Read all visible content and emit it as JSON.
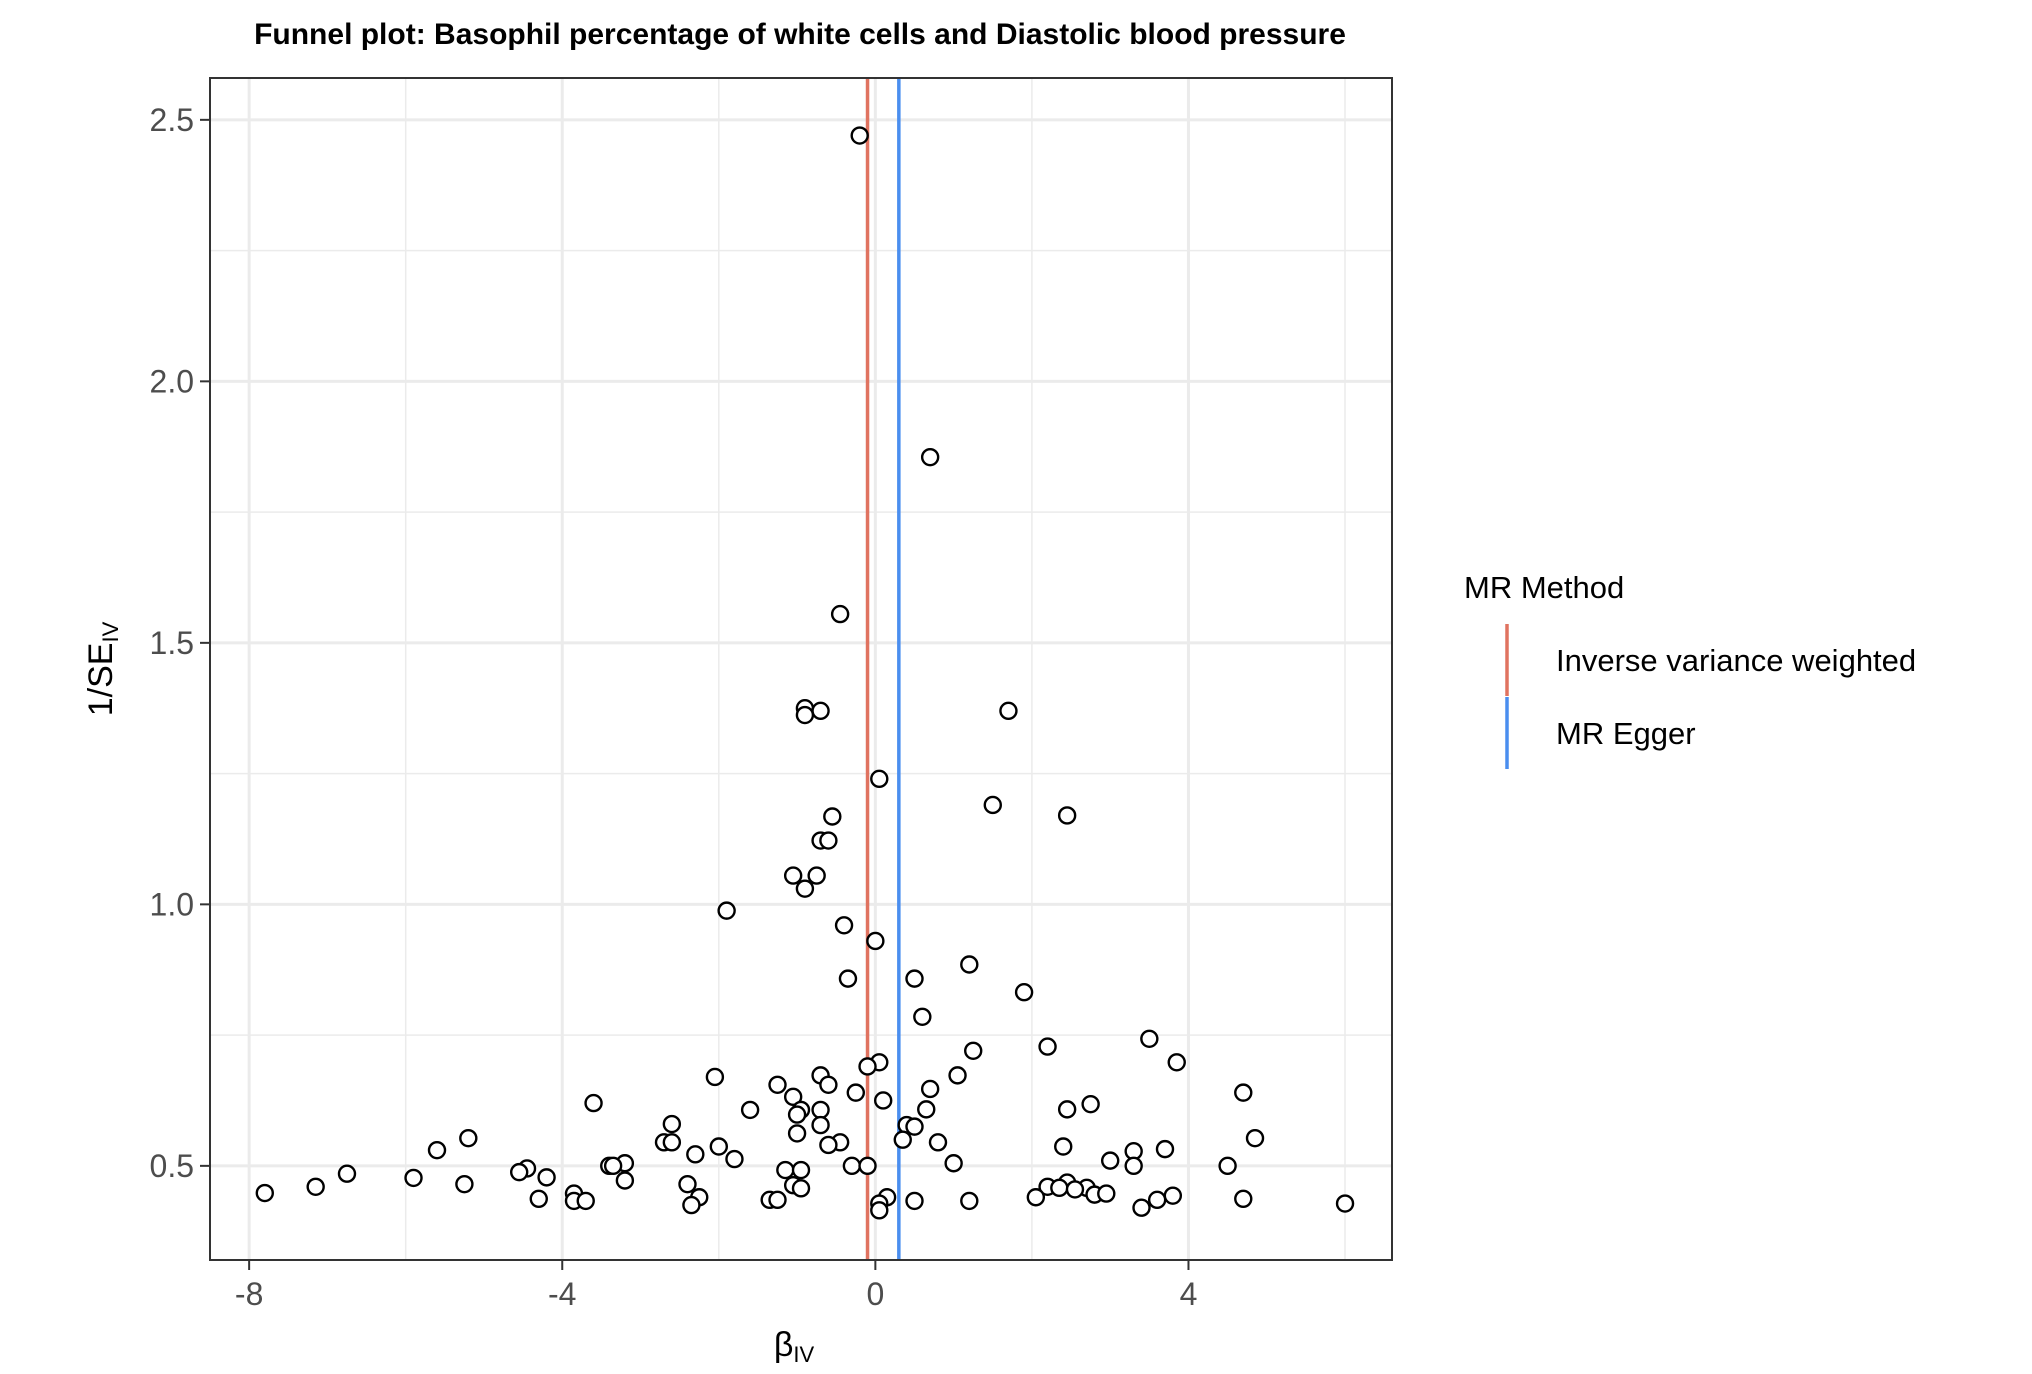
{
  "chart_data": {
    "type": "scatter",
    "title": "Funnel plot: Basophil percentage of white cells and Diastolic blood pressure",
    "xlabel": "β",
    "xlabel_sub": "IV",
    "ylabel": "1/SE",
    "ylabel_sub": "IV",
    "xlim": [
      -8.5,
      6.6
    ],
    "ylim": [
      0.32,
      2.58
    ],
    "xticks": [
      -8,
      -4,
      0,
      4
    ],
    "xtick_labels": [
      "-8",
      "-4",
      "0",
      "4"
    ],
    "yticks": [
      0.5,
      1.0,
      1.5,
      2.0,
      2.5
    ],
    "ytick_labels": [
      "0.5",
      "1.0",
      "1.5",
      "2.0",
      "2.5"
    ],
    "grid": true,
    "legend": {
      "title": "MR Method",
      "position": "right",
      "entries": [
        {
          "label": "Inverse variance weighted",
          "color": "#e07360"
        },
        {
          "label": "MR Egger",
          "color": "#4a8eef"
        }
      ]
    },
    "vlines": [
      {
        "name": "Inverse variance weighted",
        "x": -0.1,
        "color": "#e07360"
      },
      {
        "name": "MR Egger",
        "x": 0.3,
        "color": "#4a8eef"
      }
    ],
    "points": [
      [
        -0.2,
        2.47
      ],
      [
        0.7,
        1.855
      ],
      [
        -0.45,
        1.555
      ],
      [
        -0.9,
        1.375
      ],
      [
        -0.7,
        1.37
      ],
      [
        -0.9,
        1.362
      ],
      [
        1.7,
        1.37
      ],
      [
        0.05,
        1.24
      ],
      [
        1.5,
        1.19
      ],
      [
        2.45,
        1.17
      ],
      [
        -0.55,
        1.168
      ],
      [
        -0.7,
        1.122
      ],
      [
        -0.6,
        1.122
      ],
      [
        -1.05,
        1.055
      ],
      [
        -0.75,
        1.055
      ],
      [
        -0.9,
        1.03
      ],
      [
        -1.9,
        0.988
      ],
      [
        -0.4,
        0.96
      ],
      [
        0.0,
        0.93
      ],
      [
        -0.35,
        0.858
      ],
      [
        1.2,
        0.885
      ],
      [
        0.5,
        0.858
      ],
      [
        1.9,
        0.832
      ],
      [
        0.6,
        0.785
      ],
      [
        3.5,
        0.743
      ],
      [
        2.2,
        0.728
      ],
      [
        1.25,
        0.72
      ],
      [
        3.85,
        0.698
      ],
      [
        0.05,
        0.698
      ],
      [
        -0.1,
        0.69
      ],
      [
        -2.05,
        0.67
      ],
      [
        -0.7,
        0.673
      ],
      [
        1.05,
        0.673
      ],
      [
        -1.25,
        0.655
      ],
      [
        -0.6,
        0.655
      ],
      [
        0.7,
        0.647
      ],
      [
        4.7,
        0.64
      ],
      [
        -1.05,
        0.632
      ],
      [
        -0.25,
        0.64
      ],
      [
        0.1,
        0.625
      ],
      [
        -3.6,
        0.62
      ],
      [
        2.75,
        0.618
      ],
      [
        -1.6,
        0.607
      ],
      [
        -0.7,
        0.607
      ],
      [
        -0.95,
        0.607
      ],
      [
        -1.0,
        0.598
      ],
      [
        2.45,
        0.608
      ],
      [
        0.65,
        0.608
      ],
      [
        -2.6,
        0.58
      ],
      [
        -0.7,
        0.578
      ],
      [
        0.4,
        0.578
      ],
      [
        0.5,
        0.575
      ],
      [
        -1.0,
        0.562
      ],
      [
        4.85,
        0.553
      ],
      [
        -5.2,
        0.553
      ],
      [
        0.35,
        0.55
      ],
      [
        -2.7,
        0.545
      ],
      [
        -2.6,
        0.545
      ],
      [
        -0.45,
        0.545
      ],
      [
        -0.6,
        0.54
      ],
      [
        0.8,
        0.545
      ],
      [
        2.4,
        0.537
      ],
      [
        3.7,
        0.532
      ],
      [
        -2.0,
        0.537
      ],
      [
        -5.6,
        0.53
      ],
      [
        3.3,
        0.528
      ],
      [
        -2.3,
        0.522
      ],
      [
        -1.8,
        0.513
      ],
      [
        3.0,
        0.51
      ],
      [
        1.0,
        0.505
      ],
      [
        -3.2,
        0.505
      ],
      [
        -3.4,
        0.5
      ],
      [
        -3.35,
        0.5
      ],
      [
        -0.3,
        0.5
      ],
      [
        -0.1,
        0.5
      ],
      [
        3.3,
        0.5
      ],
      [
        4.5,
        0.5
      ],
      [
        -4.45,
        0.495
      ],
      [
        -1.15,
        0.492
      ],
      [
        -0.95,
        0.492
      ],
      [
        -4.55,
        0.488
      ],
      [
        -6.75,
        0.485
      ],
      [
        -4.2,
        0.478
      ],
      [
        -5.9,
        0.477
      ],
      [
        -3.2,
        0.472
      ],
      [
        -5.25,
        0.465
      ],
      [
        -2.4,
        0.465
      ],
      [
        -1.05,
        0.463
      ],
      [
        2.45,
        0.468
      ],
      [
        2.2,
        0.46
      ],
      [
        2.35,
        0.458
      ],
      [
        -7.15,
        0.46
      ],
      [
        2.7,
        0.458
      ],
      [
        2.55,
        0.455
      ],
      [
        -0.95,
        0.457
      ],
      [
        -7.8,
        0.448
      ],
      [
        -3.85,
        0.447
      ],
      [
        2.8,
        0.445
      ],
      [
        2.95,
        0.447
      ],
      [
        3.8,
        0.443
      ],
      [
        0.15,
        0.44
      ],
      [
        -2.25,
        0.44
      ],
      [
        2.05,
        0.44
      ],
      [
        3.6,
        0.435
      ],
      [
        -4.3,
        0.437
      ],
      [
        -1.35,
        0.435
      ],
      [
        -1.25,
        0.435
      ],
      [
        -3.85,
        0.433
      ],
      [
        -3.7,
        0.433
      ],
      [
        0.5,
        0.433
      ],
      [
        1.2,
        0.433
      ],
      [
        4.7,
        0.437
      ],
      [
        -2.35,
        0.425
      ],
      [
        6.0,
        0.428
      ],
      [
        0.05,
        0.428
      ],
      [
        3.4,
        0.42
      ],
      [
        0.05,
        0.415
      ]
    ]
  }
}
